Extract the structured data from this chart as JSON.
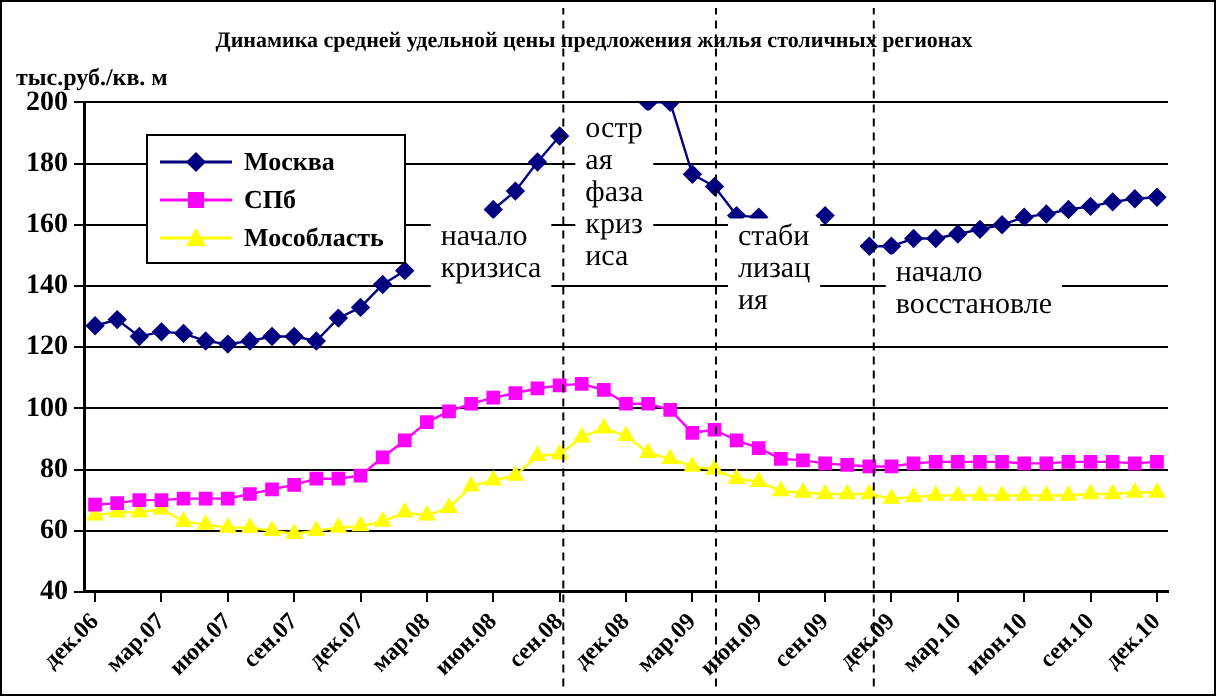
{
  "chart_data": {
    "type": "line",
    "title": "Динамика средней удельной цены предложения жилья столичных регионах",
    "ylabel": "тыс.руб./кв. м",
    "x": [
      "2006-12",
      "2007-01",
      "2007-02",
      "2007-03",
      "2007-04",
      "2007-05",
      "2007-06",
      "2007-07",
      "2007-08",
      "2007-09",
      "2007-10",
      "2007-11",
      "2007-12",
      "2008-01",
      "2008-02",
      "2008-03",
      "2008-04",
      "2008-05",
      "2008-06",
      "2008-07",
      "2008-08",
      "2008-09",
      "2008-10",
      "2008-11",
      "2008-12",
      "2009-01",
      "2009-02",
      "2009-03",
      "2009-04",
      "2009-05",
      "2009-06",
      "2009-07",
      "2009-08",
      "2009-09",
      "2009-10",
      "2009-11",
      "2009-12",
      "2010-01",
      "2010-02",
      "2010-03",
      "2010-04",
      "2010-05",
      "2010-06",
      "2010-07",
      "2010-08",
      "2010-09",
      "2010-10",
      "2010-11",
      "2010-12"
    ],
    "series": [
      {
        "name": "Москва",
        "color": "#000080",
        "marker": "diamond",
        "values": [
          127,
          129,
          123.5,
          125,
          124.5,
          122,
          121,
          122,
          123.5,
          123.5,
          122,
          129.5,
          133,
          140.5,
          145,
          null,
          null,
          null,
          165,
          171,
          180.5,
          189,
          null,
          null,
          null,
          200,
          200,
          176.5,
          172.5,
          163,
          162.5,
          null,
          null,
          163,
          null,
          153,
          153,
          155.5,
          155.5,
          157,
          158.5,
          160,
          162.5,
          163.5,
          165,
          166,
          167.5,
          168.5,
          169
        ]
      },
      {
        "name": "СПб",
        "color": "#ff00ff",
        "marker": "square",
        "values": [
          68.5,
          69,
          70,
          70,
          70.5,
          70.5,
          70.5,
          72,
          73.5,
          75,
          77,
          77,
          78,
          84,
          89.5,
          95.5,
          99,
          101.5,
          103.5,
          105,
          106.5,
          107.5,
          108,
          106,
          101.5,
          101.5,
          99.5,
          92,
          93,
          89.5,
          87,
          83.5,
          83,
          82,
          81.5,
          81,
          81,
          82,
          82.5,
          82.5,
          82.5,
          82.5,
          82,
          82,
          82.5,
          82.5,
          82.5,
          82,
          82.5
        ]
      },
      {
        "name": "Мособласть",
        "color": "#ffff00",
        "marker": "triangle",
        "values": [
          65,
          66,
          66,
          67,
          63,
          62,
          61,
          61,
          60,
          59,
          60,
          61,
          61.5,
          63,
          66,
          65,
          67.5,
          74.5,
          76.5,
          78,
          84.5,
          85,
          90.5,
          93.5,
          91,
          85.5,
          83.5,
          81,
          80,
          77,
          76,
          73,
          72.5,
          72,
          72,
          72,
          70.5,
          71,
          71.5,
          71.5,
          71.5,
          71.5,
          71.5,
          71.5,
          71.5,
          72,
          72,
          72.5,
          72.5
        ]
      }
    ],
    "xlim": [
      "2006-11-16",
      "2010-12-16"
    ],
    "xticks": [
      {
        "value": "2006-12",
        "label": "дек.06"
      },
      {
        "value": "2007-03",
        "label": "мар.07"
      },
      {
        "value": "2007-06",
        "label": "июн.07"
      },
      {
        "value": "2007-09",
        "label": "сен.07"
      },
      {
        "value": "2007-12",
        "label": "дек.07"
      },
      {
        "value": "2008-03",
        "label": "мар.08"
      },
      {
        "value": "2008-06",
        "label": "июн.08"
      },
      {
        "value": "2008-09",
        "label": "сен.08"
      },
      {
        "value": "2008-12",
        "label": "дек.08"
      },
      {
        "value": "2009-03",
        "label": "мар.09"
      },
      {
        "value": "2009-06",
        "label": "июн.09"
      },
      {
        "value": "2009-09",
        "label": "сен.09"
      },
      {
        "value": "2009-12",
        "label": "дек.09"
      },
      {
        "value": "2010-03",
        "label": "мар.10"
      },
      {
        "value": "2010-06",
        "label": "июн.10"
      },
      {
        "value": "2010-09",
        "label": "сен.10"
      },
      {
        "value": "2010-12",
        "label": "дек.10"
      }
    ],
    "ylim": [
      40,
      200
    ],
    "yticks": [
      40,
      60,
      80,
      100,
      120,
      140,
      160,
      180,
      200
    ],
    "ref_lines": [
      {
        "axis": "x",
        "value": "2008-09-06",
        "color": "#000000",
        "line_style": "dashed"
      },
      {
        "axis": "x",
        "value": "2009-04-03",
        "color": "#000000",
        "line_style": "dashed"
      },
      {
        "axis": "x",
        "value": "2009-11-07",
        "color": "#000000",
        "line_style": "dashed"
      }
    ],
    "annotations": [
      "начало\nкризиса",
      "остр\nая\nфаза\nкриз\nиса",
      "стаби\nлизац\nия",
      "начало\nвосстановле"
    ],
    "grid": "y",
    "legend": "top left",
    "line_style": "solid"
  }
}
